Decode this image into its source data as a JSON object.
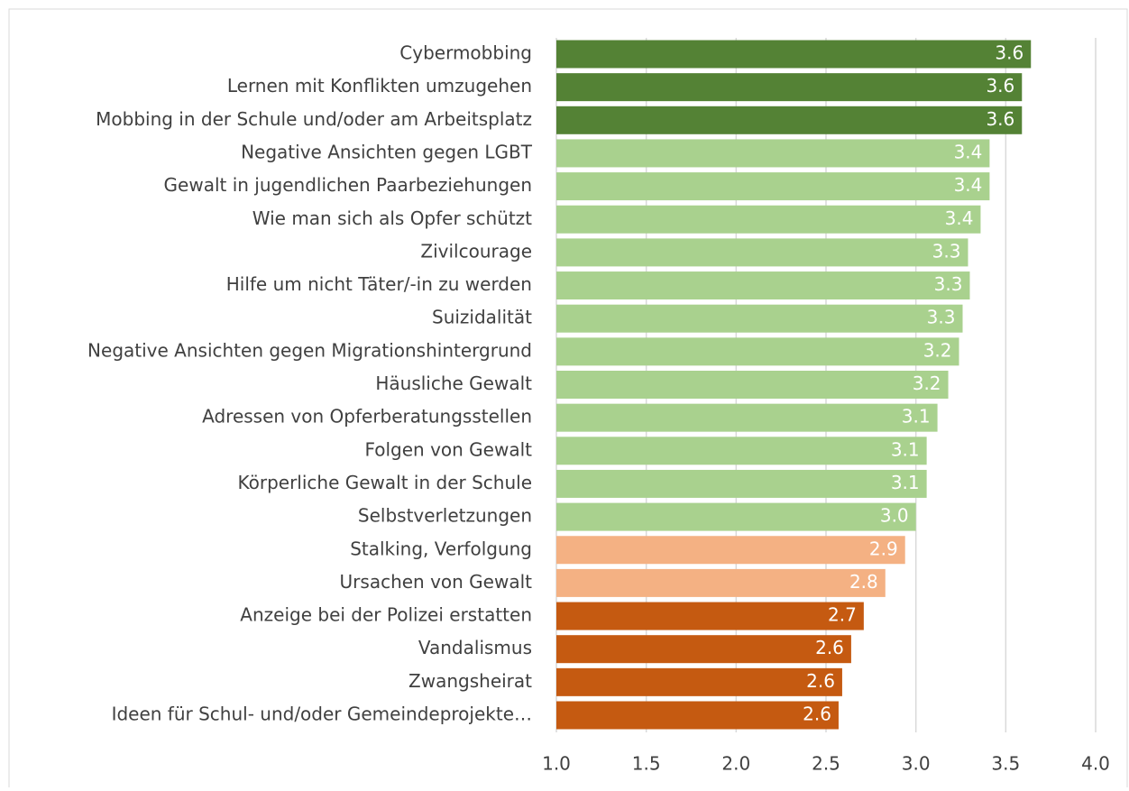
{
  "chart_data": {
    "type": "hbar",
    "categories": [
      "Cybermobbing",
      "Lernen mit Konflikten umzugehen",
      "Mobbing in der Schule und/oder am Arbeitsplatz",
      "Negative Ansichten gegen LGBT",
      "Gewalt in jugendlichen Paarbeziehungen",
      "Wie man sich als Opfer schützt",
      "Zivilcourage",
      "Hilfe um nicht Täter/-in zu werden",
      "Suizidalität",
      "Negative Ansichten gegen Migrationshintergrund",
      "Häusliche Gewalt",
      "Adressen von Opferberatungsstellen",
      "Folgen von Gewalt",
      "Körperliche Gewalt in der Schule",
      "Selbstverletzungen",
      "Stalking, Verfolgung",
      "Ursachen von Gewalt",
      "Anzeige bei der Polizei erstatten",
      "Vandalismus",
      "Zwangsheirat",
      "Ideen für Schul- und/oder Gemeindeprojekte…"
    ],
    "values": [
      3.64,
      3.59,
      3.59,
      3.41,
      3.41,
      3.36,
      3.29,
      3.3,
      3.26,
      3.24,
      3.18,
      3.12,
      3.06,
      3.06,
      3.0,
      2.94,
      2.83,
      2.71,
      2.64,
      2.59,
      2.57
    ],
    "value_labels": [
      "3.6",
      "3.6",
      "3.6",
      "3.4",
      "3.4",
      "3.4",
      "3.3",
      "3.3",
      "3.3",
      "3.2",
      "3.2",
      "3.1",
      "3.1",
      "3.1",
      "3.0",
      "2.9",
      "2.8",
      "2.7",
      "2.6",
      "2.6",
      "2.6"
    ],
    "colors": [
      "#548235",
      "#548235",
      "#548235",
      "#a9d18e",
      "#a9d18e",
      "#a9d18e",
      "#a9d18e",
      "#a9d18e",
      "#a9d18e",
      "#a9d18e",
      "#a9d18e",
      "#a9d18e",
      "#a9d18e",
      "#a9d18e",
      "#a9d18e",
      "#f4b183",
      "#f4b183",
      "#c55a11",
      "#c55a11",
      "#c55a11",
      "#c55a11"
    ],
    "xlim": [
      1,
      4
    ],
    "xticks": [
      {
        "value": 1,
        "label": "1.0"
      },
      1.5,
      {
        "value": 2,
        "label": "2.0"
      },
      2.5,
      {
        "value": 3,
        "label": "3.0"
      },
      3.5,
      {
        "value": 4,
        "label": "4.0"
      }
    ],
    "grid": true
  }
}
